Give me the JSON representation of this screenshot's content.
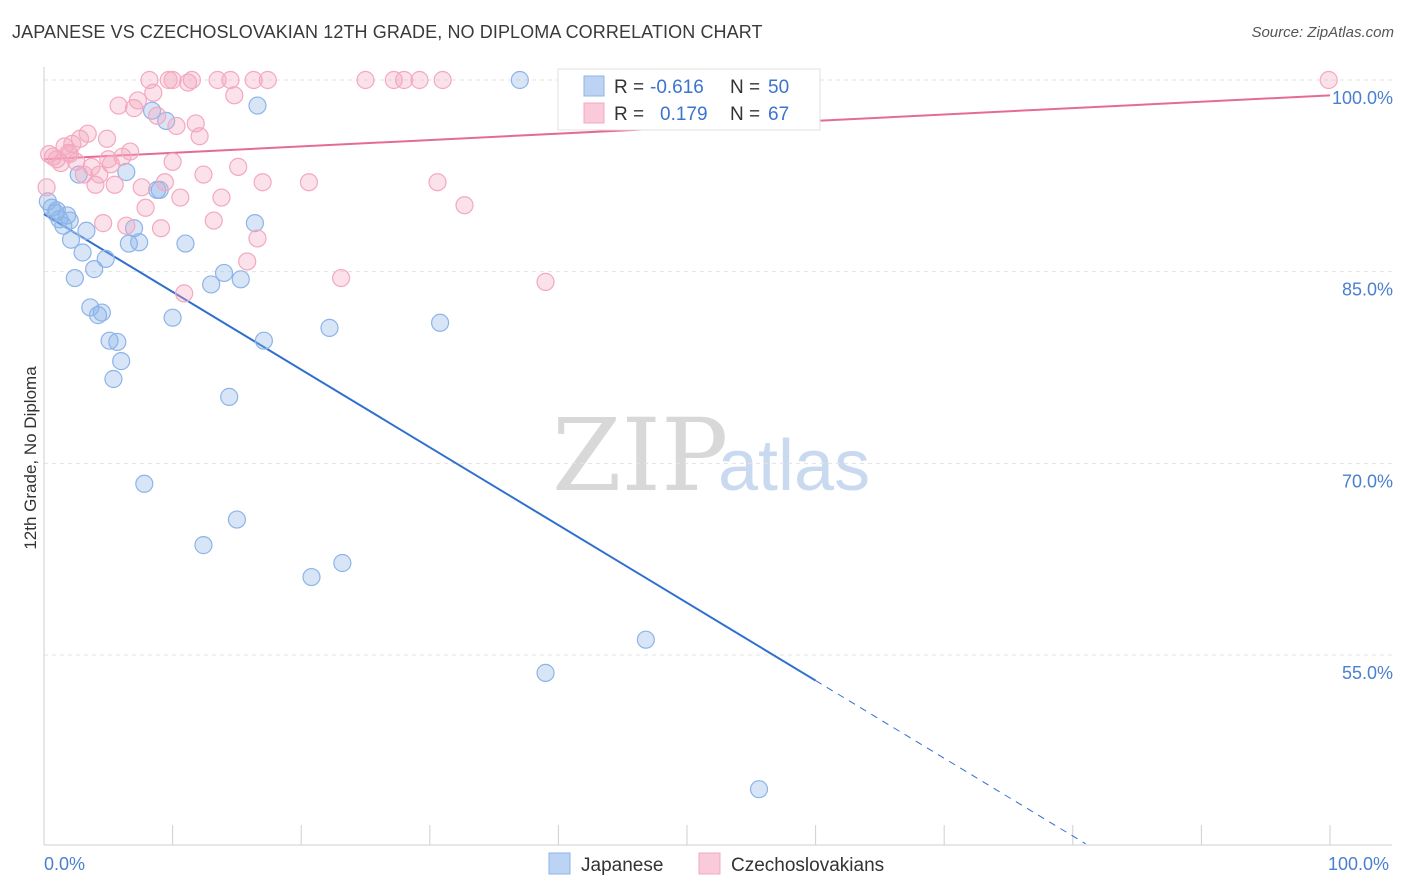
{
  "chart_data": {
    "type": "scatter",
    "title": "JAPANESE VS CZECHOSLOVAKIAN 12TH GRADE, NO DIPLOMA CORRELATION CHART",
    "source": "Source: ZipAtlas.com",
    "ylabel": "12th Grade, No Diploma",
    "xlim": [
      0,
      100
    ],
    "ylim": [
      40,
      102
    ],
    "x_tick_labels": [
      "0.0%",
      "100.0%"
    ],
    "y_ticks": [
      {
        "value": 100,
        "label": "100.0%"
      },
      {
        "value": 85,
        "label": "85.0%"
      },
      {
        "value": 70,
        "label": "70.0%"
      },
      {
        "value": 55,
        "label": "55.0%"
      }
    ],
    "watermark": {
      "zip": "ZIP",
      "atlas": "atlas"
    },
    "series": [
      {
        "name": "Japanese",
        "color": "#8db4e8",
        "line_color": "#2f6fcf",
        "r_label": "R =",
        "r_value": "-0.616",
        "n_label": "N =",
        "n_value": "50",
        "trend": {
          "x0": 0,
          "y0": 89.5,
          "x1": 60,
          "y1": 53.0,
          "dash_to_x": 81
        },
        "points": [
          [
            0.3,
            90.5
          ],
          [
            0.6,
            90.0
          ],
          [
            0.9,
            89.6
          ],
          [
            1.2,
            89.1
          ],
          [
            1.5,
            88.6
          ],
          [
            1.8,
            89.4
          ],
          [
            2.1,
            87.5
          ],
          [
            2.4,
            84.5
          ],
          [
            2.7,
            92.6
          ],
          [
            3.0,
            86.5
          ],
          [
            3.3,
            88.2
          ],
          [
            3.6,
            82.2
          ],
          [
            3.9,
            85.2
          ],
          [
            4.2,
            81.6
          ],
          [
            4.5,
            81.8
          ],
          [
            4.8,
            86.0
          ],
          [
            5.1,
            79.6
          ],
          [
            5.4,
            76.6
          ],
          [
            5.7,
            79.5
          ],
          [
            6.0,
            78.0
          ],
          [
            6.6,
            87.2
          ],
          [
            7.0,
            88.4
          ],
          [
            7.4,
            87.3
          ],
          [
            7.8,
            68.4
          ],
          [
            8.4,
            97.6
          ],
          [
            9.0,
            91.4
          ],
          [
            9.5,
            96.8
          ],
          [
            10.0,
            81.4
          ],
          [
            11.0,
            87.2
          ],
          [
            12.4,
            63.6
          ],
          [
            13.0,
            84.0
          ],
          [
            14.0,
            84.9
          ],
          [
            14.4,
            75.2
          ],
          [
            15.0,
            65.6
          ],
          [
            15.3,
            84.4
          ],
          [
            16.4,
            88.8
          ],
          [
            16.6,
            98.0
          ],
          [
            17.1,
            79.6
          ],
          [
            20.8,
            61.1
          ],
          [
            22.2,
            80.6
          ],
          [
            23.2,
            62.2
          ],
          [
            30.8,
            81.0
          ],
          [
            37.0,
            100.0
          ],
          [
            39.0,
            53.6
          ],
          [
            46.8,
            56.2
          ],
          [
            55.6,
            44.5
          ],
          [
            8.8,
            91.4
          ],
          [
            1.0,
            89.8
          ],
          [
            6.4,
            92.8
          ],
          [
            2.0,
            89.0
          ]
        ]
      },
      {
        "name": "Czechoslovakians",
        "color": "#f4a8c0",
        "line_color": "#e56b94",
        "r_label": "R =",
        "r_value": "0.179",
        "n_label": "N =",
        "n_value": "67",
        "trend": {
          "x0": 0,
          "y0": 93.8,
          "x1": 100,
          "y1": 98.8
        },
        "points": [
          [
            0.2,
            91.6
          ],
          [
            0.4,
            94.2
          ],
          [
            0.7,
            94.0
          ],
          [
            1.0,
            93.8
          ],
          [
            1.3,
            93.5
          ],
          [
            1.6,
            94.8
          ],
          [
            1.9,
            94.3
          ],
          [
            2.2,
            95.0
          ],
          [
            2.5,
            93.6
          ],
          [
            2.8,
            95.4
          ],
          [
            3.1,
            92.6
          ],
          [
            3.4,
            95.8
          ],
          [
            3.7,
            93.2
          ],
          [
            4.0,
            91.8
          ],
          [
            4.3,
            92.6
          ],
          [
            4.6,
            88.8
          ],
          [
            4.9,
            95.4
          ],
          [
            5.2,
            93.4
          ],
          [
            5.5,
            91.8
          ],
          [
            5.8,
            98.0
          ],
          [
            6.1,
            94.0
          ],
          [
            6.4,
            88.6
          ],
          [
            6.7,
            94.4
          ],
          [
            7.0,
            97.8
          ],
          [
            7.3,
            98.4
          ],
          [
            7.6,
            91.6
          ],
          [
            7.9,
            90.0
          ],
          [
            8.2,
            100.0
          ],
          [
            8.5,
            99.0
          ],
          [
            8.8,
            97.2
          ],
          [
            9.1,
            88.4
          ],
          [
            9.4,
            92.0
          ],
          [
            9.7,
            100.0
          ],
          [
            10.0,
            93.6
          ],
          [
            10.3,
            96.4
          ],
          [
            10.6,
            90.8
          ],
          [
            10.9,
            83.3
          ],
          [
            11.2,
            99.8
          ],
          [
            11.5,
            100.0
          ],
          [
            11.8,
            96.6
          ],
          [
            12.1,
            95.6
          ],
          [
            12.4,
            92.6
          ],
          [
            13.2,
            89.0
          ],
          [
            13.5,
            100.0
          ],
          [
            13.8,
            90.8
          ],
          [
            14.5,
            100.0
          ],
          [
            14.8,
            98.8
          ],
          [
            15.1,
            93.2
          ],
          [
            16.3,
            100.0
          ],
          [
            16.6,
            87.6
          ],
          [
            17.0,
            92.0
          ],
          [
            17.4,
            100.0
          ],
          [
            20.6,
            92.0
          ],
          [
            23.1,
            84.5
          ],
          [
            25.0,
            100.0
          ],
          [
            27.2,
            100.0
          ],
          [
            28.0,
            100.0
          ],
          [
            29.2,
            100.0
          ],
          [
            30.6,
            92.0
          ],
          [
            31.0,
            100.0
          ],
          [
            32.7,
            90.2
          ],
          [
            39.0,
            84.2
          ],
          [
            99.9,
            100.0
          ],
          [
            15.8,
            85.8
          ],
          [
            10.0,
            100.0
          ],
          [
            2.0,
            94.2
          ],
          [
            5.0,
            93.8
          ]
        ]
      }
    ]
  }
}
